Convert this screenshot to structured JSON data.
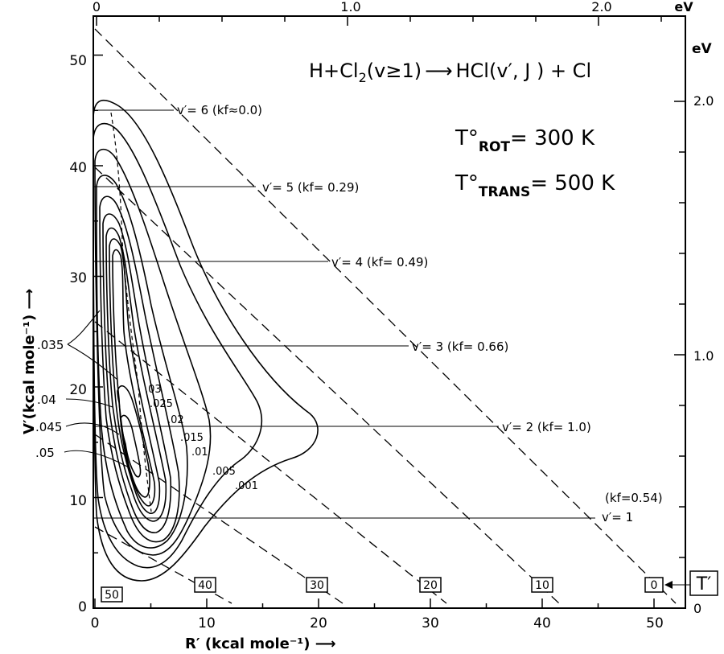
{
  "figure": {
    "reaction": {
      "prefix": "H+Cl",
      "reactant_sub": "2",
      "reactant_state": "(v≥1)",
      "arrow": "⟶",
      "product": "HCl(v′, J ) + Cl"
    },
    "t_rot": {
      "sym": "T°",
      "sub": "ROT",
      "value": "= 300 K"
    },
    "t_trans": {
      "sym": "T°",
      "sub": "TRANS",
      "value": "= 500 K"
    },
    "ylabel": "V′(kcal mole⁻¹) ⟶",
    "xlabel": "R′ (kcal mole⁻¹) ⟶",
    "top_unit": "eV",
    "right_unit": "eV",
    "t_marker": "T′",
    "kf_v1": "(kf=0.54)"
  },
  "chart_data": {
    "type": "contour",
    "x_axis": {
      "label": "R′ (kcal mole⁻¹)",
      "range": [
        0,
        53
      ],
      "ticks": [
        0,
        10,
        20,
        30,
        40,
        50
      ]
    },
    "y_axis": {
      "label": "V′(kcal mole⁻¹)",
      "range": [
        0,
        53
      ],
      "ticks": [
        0,
        10,
        20,
        30,
        40,
        50
      ]
    },
    "top_axis": {
      "unit": "eV",
      "ticks": [
        "0",
        "1.0",
        "2.0"
      ]
    },
    "right_axis": {
      "unit": "eV",
      "ticks": [
        "0",
        "1.0",
        "2.0"
      ]
    },
    "vibrational_levels": [
      {
        "label": "v′= 6 (kf≈0.0)",
        "V": 43.0
      },
      {
        "label": "v′= 5 (kf= 0.29)",
        "V": 36.8
      },
      {
        "label": "v′= 4 (kf= 0.49)",
        "V": 30.3
      },
      {
        "label": "v′= 3 (kf= 0.66)",
        "V": 23.5
      },
      {
        "label": "v′= 2 (kf= 1.0)",
        "V": 15.8
      },
      {
        "label": "v′= 1",
        "V": 7.7
      }
    ],
    "translational_energy_lines": [
      "50",
      "40",
      "30",
      "20",
      "10",
      "0"
    ],
    "contour_levels": [
      ".001",
      ".005",
      ".01",
      ".015",
      ".02",
      ".025",
      ".03",
      ".035",
      ".04",
      ".045",
      ".05"
    ]
  }
}
